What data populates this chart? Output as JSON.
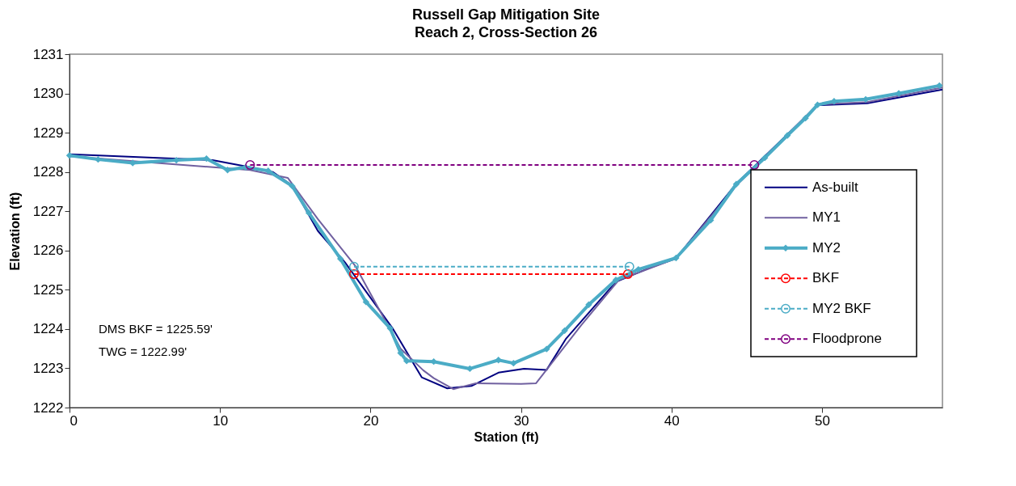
{
  "chart_data": {
    "type": "line",
    "title": "Russell Gap Mitigation Site\nReach 2, Cross-Section 26",
    "xlabel": "Station (ft)",
    "ylabel": "Elevation (ft)",
    "xlim": [
      0,
      58
    ],
    "xticks": [
      0,
      10,
      20,
      30,
      40,
      50
    ],
    "ylim": [
      1222,
      1231
    ],
    "yticks": [
      1222,
      1223,
      1224,
      1225,
      1226,
      1227,
      1228,
      1229,
      1230,
      1231
    ],
    "grid": false,
    "legend": "right",
    "annotations": [
      "DMS BKF = 1225.59'",
      "TWG = 1222.99'"
    ],
    "series": [
      {
        "name": "As-built",
        "color": "#000080",
        "marker": "none",
        "line_style": "solid",
        "x": [
          0,
          9.5,
          12,
          13.5,
          14.8,
          16.5,
          18.3,
          21.5,
          23.4,
          25.1,
          26.7,
          28.5,
          30.2,
          31.7,
          33.0,
          36.3,
          38.5,
          40.3,
          44.3,
          49.7,
          53.0,
          58.0
        ],
        "values": [
          1228.45,
          1228.3,
          1228.12,
          1228.0,
          1227.65,
          1226.5,
          1225.7,
          1224.0,
          1222.77,
          1222.49,
          1222.55,
          1222.89,
          1222.99,
          1222.96,
          1223.76,
          1225.2,
          1225.55,
          1225.8,
          1227.7,
          1229.7,
          1229.75,
          1230.1
        ]
      },
      {
        "name": "MY1",
        "color": "#7060a0",
        "marker": "none",
        "line_style": "solid",
        "x": [
          0,
          12,
          14.5,
          16.5,
          19,
          22,
          23.5,
          24.2,
          25.5,
          27,
          30,
          31,
          34,
          36.5,
          40.3,
          44.3,
          49.7,
          53,
          58
        ],
        "values": [
          1228.4,
          1228.05,
          1227.85,
          1226.8,
          1225.6,
          1223.5,
          1222.95,
          1222.75,
          1222.47,
          1222.62,
          1222.6,
          1222.62,
          1224.1,
          1225.25,
          1225.8,
          1227.65,
          1229.72,
          1229.78,
          1230.15
        ]
      },
      {
        "name": "MY2",
        "color": "#4bacc6",
        "marker": "diamond",
        "line_style": "solid",
        "x": [
          0.0,
          1.9,
          4.2,
          7.1,
          9.1,
          10.5,
          11.7,
          13.2,
          14.8,
          15.9,
          18.0,
          19.7,
          21.3,
          22.0,
          22.4,
          24.2,
          26.6,
          28.5,
          29.5,
          31.7,
          32.9,
          34.5,
          36.3,
          37.8,
          40.3,
          42.6,
          44.3,
          46.2,
          47.7,
          48.9,
          49.7,
          50.8,
          52.9,
          55.1,
          57.8
        ],
        "values": [
          1228.42,
          1228.32,
          1228.23,
          1228.3,
          1228.34,
          1228.05,
          1228.12,
          1228.03,
          1227.64,
          1226.96,
          1225.79,
          1224.69,
          1224.02,
          1223.39,
          1223.19,
          1223.17,
          1222.99,
          1223.21,
          1223.13,
          1223.49,
          1223.96,
          1224.62,
          1225.25,
          1225.52,
          1225.81,
          1226.77,
          1227.69,
          1228.36,
          1228.93,
          1229.37,
          1229.71,
          1229.8,
          1229.85,
          1230.0,
          1230.2
        ]
      },
      {
        "name": "BKF",
        "color": "#ff0000",
        "marker": "circle",
        "line_style": "dashed",
        "x": [
          18.9,
          37.1
        ],
        "values": [
          1225.4,
          1225.4
        ]
      },
      {
        "name": "MY2 BKF",
        "color": "#4bacc6",
        "marker": "circle",
        "line_style": "dashed",
        "x": [
          18.9,
          37.2
        ],
        "values": [
          1225.59,
          1225.59
        ]
      },
      {
        "name": "Floodprone",
        "color": "#800080",
        "marker": "circle",
        "line_style": "dashed",
        "x": [
          12.0,
          45.5
        ],
        "values": [
          1228.18,
          1228.18
        ]
      }
    ]
  }
}
